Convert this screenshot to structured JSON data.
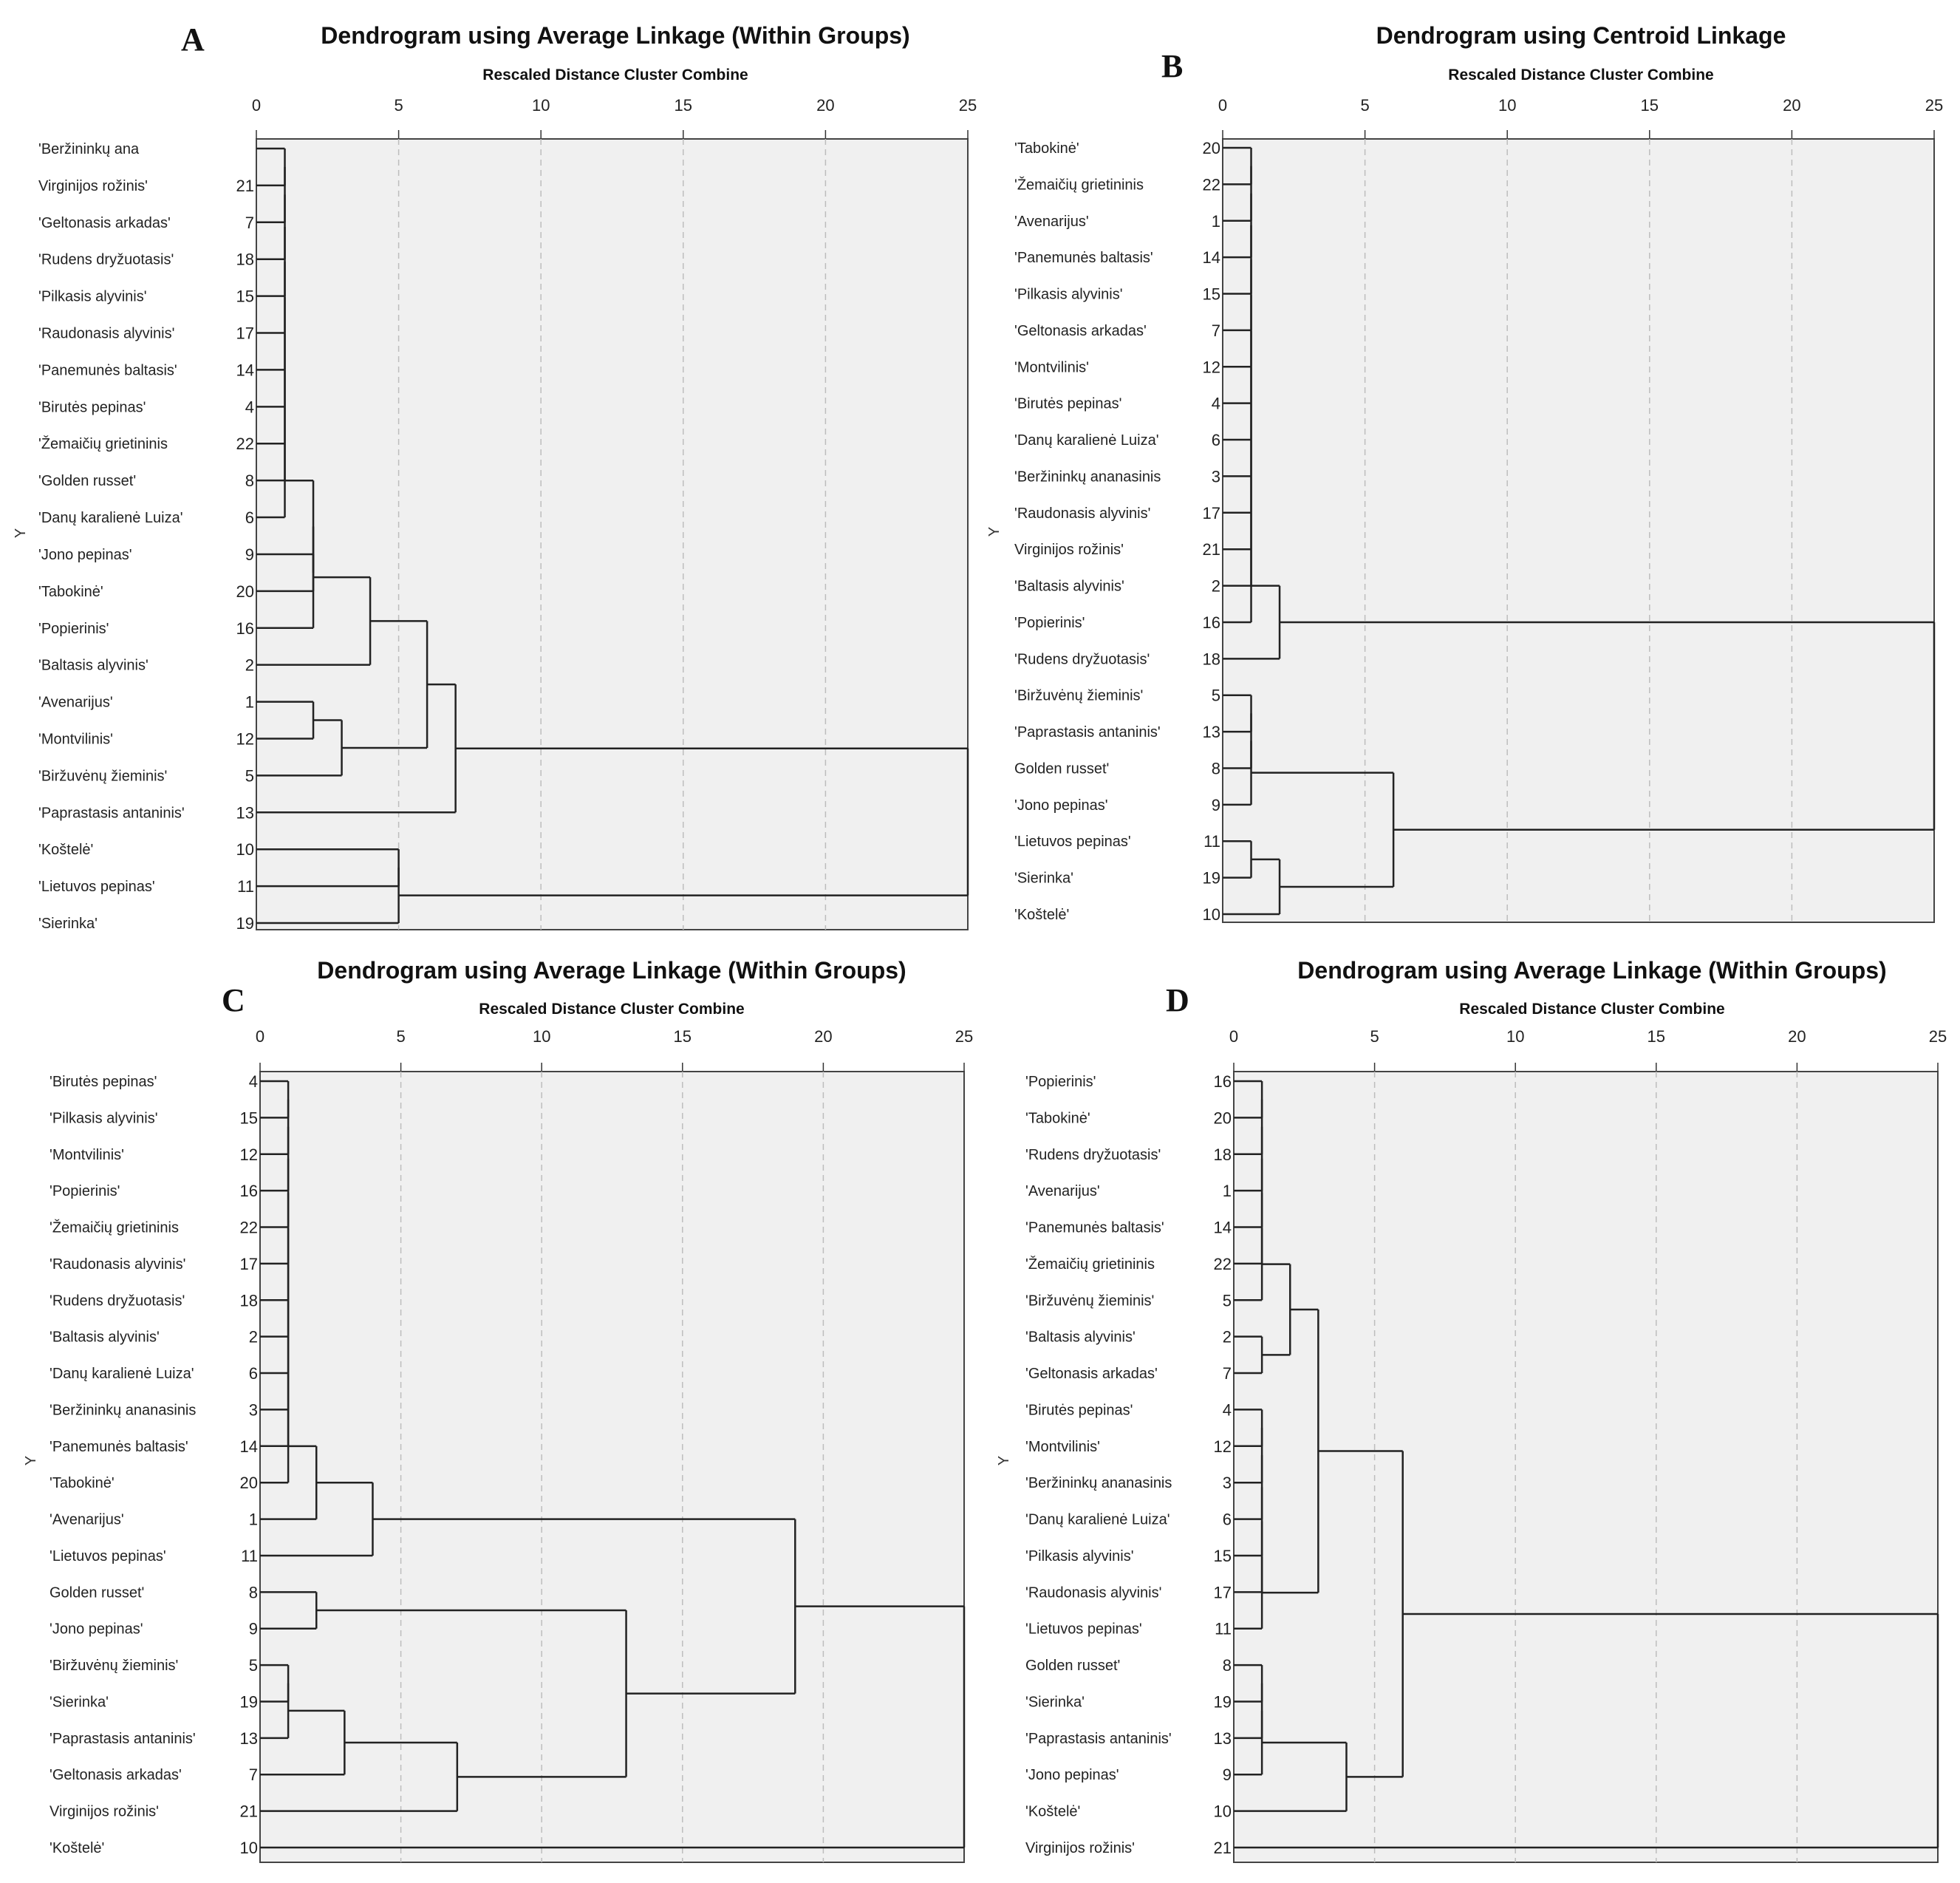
{
  "figure": {
    "panels": [
      {
        "letter": "A",
        "title": "Dendrogram using Average Linkage (Within Groups)",
        "subtitle": "Rescaled Distance Cluster Combine",
        "ylabel": "Y"
      },
      {
        "letter": "B",
        "title": "Dendrogram using Centroid Linkage",
        "subtitle": "Rescaled Distance Cluster Combine",
        "ylabel": "Y"
      },
      {
        "letter": "C",
        "title": "Dendrogram using Average Linkage (Within Groups)",
        "subtitle": "Rescaled Distance Cluster Combine",
        "ylabel": "Y"
      },
      {
        "letter": "D",
        "title": "Dendrogram using Average Linkage (Within Groups)",
        "subtitle": "Rescaled Distance Cluster Combine",
        "ylabel": "Y"
      }
    ]
  },
  "chart_data": [
    {
      "type": "dendrogram",
      "panel": "A",
      "title": "Dendrogram using Average Linkage (Within Groups)",
      "xlabel": "Rescaled Distance Cluster Combine",
      "ylabel": "Y",
      "xlim": [
        0,
        25
      ],
      "xticks": [
        0,
        5,
        10,
        15,
        20,
        25
      ],
      "leaves": [
        {
          "name": "'Beržininkų ana",
          "id": ""
        },
        {
          "name": "Virginijos rožinis'",
          "id": "21"
        },
        {
          "name": "'Geltonasis arkadas'",
          "id": "7"
        },
        {
          "name": "'Rudens dryžuotasis'",
          "id": "18"
        },
        {
          "name": "'Pilkasis alyvinis'",
          "id": "15"
        },
        {
          "name": "'Raudonasis alyvinis'",
          "id": "17"
        },
        {
          "name": "'Panemunės baltasis'",
          "id": "14"
        },
        {
          "name": "'Birutės pepinas'",
          "id": "4"
        },
        {
          "name": "'Žemaičių grietininis",
          "id": "22"
        },
        {
          "name": "'Golden russet'",
          "id": "8"
        },
        {
          "name": "'Danų karalienė Luiza'",
          "id": "6"
        },
        {
          "name": "'Jono pepinas'",
          "id": "9"
        },
        {
          "name": "'Tabokinė'",
          "id": "20"
        },
        {
          "name": "'Popierinis'",
          "id": "16"
        },
        {
          "name": "'Baltasis alyvinis'",
          "id": "2"
        },
        {
          "name": "'Avenarijus'",
          "id": "1"
        },
        {
          "name": "'Montvilinis'",
          "id": "12"
        },
        {
          "name": "'Biržuvėnų žieminis'",
          "id": "5"
        },
        {
          "name": "'Paprastasis antaninis'",
          "id": "13"
        },
        {
          "name": "'Koštelė'",
          "id": "10"
        },
        {
          "name": "'Lietuvos pepinas'",
          "id": "11"
        },
        {
          "name": "'Sierinka'",
          "id": "19"
        }
      ],
      "merges": [
        [
          0,
          1,
          1.0
        ],
        [
          22,
          2,
          1.0
        ],
        [
          23,
          3,
          1.0
        ],
        [
          24,
          4,
          1.0
        ],
        [
          25,
          5,
          1.0
        ],
        [
          26,
          6,
          1.0
        ],
        [
          27,
          7,
          1.0
        ],
        [
          28,
          8,
          1.0
        ],
        [
          29,
          9,
          1.0
        ],
        [
          30,
          10,
          1.0
        ],
        [
          11,
          12,
          2.0
        ],
        [
          31,
          32,
          2.0
        ],
        [
          33,
          13,
          2.0
        ],
        [
          34,
          14,
          4.0
        ],
        [
          15,
          16,
          2.0
        ],
        [
          36,
          17,
          3.0
        ],
        [
          35,
          37,
          6.0
        ],
        [
          38,
          18,
          7.0
        ],
        [
          19,
          20,
          5.0
        ],
        [
          40,
          21,
          5.0
        ],
        [
          39,
          41,
          25.0
        ]
      ]
    },
    {
      "type": "dendrogram",
      "panel": "B",
      "title": "Dendrogram using Centroid Linkage",
      "xlabel": "Rescaled Distance Cluster Combine",
      "ylabel": "Y",
      "xlim": [
        0,
        25
      ],
      "xticks": [
        0,
        5,
        10,
        15,
        20,
        25
      ],
      "leaves": [
        {
          "name": "'Tabokinė'",
          "id": "20"
        },
        {
          "name": "'Žemaičių grietininis",
          "id": "22"
        },
        {
          "name": "'Avenarijus'",
          "id": "1"
        },
        {
          "name": "'Panemunės baltasis'",
          "id": "14"
        },
        {
          "name": "'Pilkasis alyvinis'",
          "id": "15"
        },
        {
          "name": "'Geltonasis arkadas'",
          "id": "7"
        },
        {
          "name": "'Montvilinis'",
          "id": "12"
        },
        {
          "name": "'Birutės pepinas'",
          "id": "4"
        },
        {
          "name": "'Danų karalienė Luiza'",
          "id": "6"
        },
        {
          "name": "'Beržininkų ananasinis",
          "id": "3"
        },
        {
          "name": "'Raudonasis alyvinis'",
          "id": "17"
        },
        {
          "name": "Virginijos rožinis'",
          "id": "21"
        },
        {
          "name": "'Baltasis alyvinis'",
          "id": "2"
        },
        {
          "name": "'Popierinis'",
          "id": "16"
        },
        {
          "name": "'Rudens dryžuotasis'",
          "id": "18"
        },
        {
          "name": "'Biržuvėnų žieminis'",
          "id": "5"
        },
        {
          "name": "'Paprastasis antaninis'",
          "id": "13"
        },
        {
          "name": "Golden russet'",
          "id": "8"
        },
        {
          "name": "'Jono pepinas'",
          "id": "9"
        },
        {
          "name": "'Lietuvos pepinas'",
          "id": "11"
        },
        {
          "name": "'Sierinka'",
          "id": "19"
        },
        {
          "name": "'Koštelė'",
          "id": "10"
        }
      ],
      "merges": [
        [
          0,
          1,
          1.0
        ],
        [
          22,
          2,
          1.0
        ],
        [
          23,
          3,
          1.0
        ],
        [
          24,
          4,
          1.0
        ],
        [
          25,
          5,
          1.0
        ],
        [
          26,
          6,
          1.0
        ],
        [
          27,
          7,
          1.0
        ],
        [
          28,
          8,
          1.0
        ],
        [
          29,
          9,
          1.0
        ],
        [
          30,
          10,
          1.0
        ],
        [
          31,
          11,
          1.0
        ],
        [
          32,
          12,
          1.0
        ],
        [
          33,
          13,
          1.0
        ],
        [
          34,
          14,
          2.0
        ],
        [
          15,
          16,
          1.0
        ],
        [
          36,
          17,
          1.0
        ],
        [
          37,
          18,
          1.0
        ],
        [
          19,
          20,
          1.0
        ],
        [
          39,
          21,
          2.0
        ],
        [
          38,
          40,
          6.0
        ],
        [
          35,
          41,
          25.0
        ]
      ]
    },
    {
      "type": "dendrogram",
      "panel": "C",
      "title": "Dendrogram using Average Linkage (Within Groups)",
      "xlabel": "Rescaled Distance Cluster Combine",
      "ylabel": "Y",
      "xlim": [
        0,
        25
      ],
      "xticks": [
        0,
        5,
        10,
        15,
        20,
        25
      ],
      "leaves": [
        {
          "name": "'Birutės pepinas'",
          "id": "4"
        },
        {
          "name": "'Pilkasis alyvinis'",
          "id": "15"
        },
        {
          "name": "'Montvilinis'",
          "id": "12"
        },
        {
          "name": "'Popierinis'",
          "id": "16"
        },
        {
          "name": "'Žemaičių grietininis",
          "id": "22"
        },
        {
          "name": "'Raudonasis alyvinis'",
          "id": "17"
        },
        {
          "name": "'Rudens dryžuotasis'",
          "id": "18"
        },
        {
          "name": "'Baltasis alyvinis'",
          "id": "2"
        },
        {
          "name": "'Danų karalienė Luiza'",
          "id": "6"
        },
        {
          "name": "'Beržininkų ananasinis",
          "id": "3"
        },
        {
          "name": "'Panemunės baltasis'",
          "id": "14"
        },
        {
          "name": "'Tabokinė'",
          "id": "20"
        },
        {
          "name": "'Avenarijus'",
          "id": "1"
        },
        {
          "name": "'Lietuvos pepinas'",
          "id": "11"
        },
        {
          "name": "Golden russet'",
          "id": "8"
        },
        {
          "name": "'Jono pepinas'",
          "id": "9"
        },
        {
          "name": "'Biržuvėnų žieminis'",
          "id": "5"
        },
        {
          "name": "'Sierinka'",
          "id": "19"
        },
        {
          "name": "'Paprastasis antaninis'",
          "id": "13"
        },
        {
          "name": "'Geltonasis arkadas'",
          "id": "7"
        },
        {
          "name": "Virginijos rožinis'",
          "id": "21"
        },
        {
          "name": "'Koštelė'",
          "id": "10"
        }
      ],
      "merges": [
        [
          0,
          1,
          1.0
        ],
        [
          22,
          2,
          1.0
        ],
        [
          23,
          3,
          1.0
        ],
        [
          24,
          4,
          1.0
        ],
        [
          25,
          5,
          1.0
        ],
        [
          26,
          6,
          1.0
        ],
        [
          27,
          7,
          1.0
        ],
        [
          28,
          8,
          1.0
        ],
        [
          29,
          9,
          1.0
        ],
        [
          30,
          10,
          1.0
        ],
        [
          31,
          11,
          1.0
        ],
        [
          32,
          12,
          2.0
        ],
        [
          33,
          13,
          4.0
        ],
        [
          14,
          15,
          2.0
        ],
        [
          16,
          17,
          1.0
        ],
        [
          36,
          18,
          1.0
        ],
        [
          37,
          19,
          3.0
        ],
        [
          38,
          20,
          7.0
        ],
        [
          35,
          39,
          13.0
        ],
        [
          34,
          40,
          19.0
        ],
        [
          41,
          21,
          25.0
        ]
      ]
    },
    {
      "type": "dendrogram",
      "panel": "D",
      "title": "Dendrogram using Average Linkage (Within Groups)",
      "xlabel": "Rescaled Distance Cluster Combine",
      "ylabel": "Y",
      "xlim": [
        0,
        25
      ],
      "xticks": [
        0,
        5,
        10,
        15,
        20,
        25
      ],
      "leaves": [
        {
          "name": "'Popierinis'",
          "id": "16"
        },
        {
          "name": "'Tabokinė'",
          "id": "20"
        },
        {
          "name": "'Rudens dryžuotasis'",
          "id": "18"
        },
        {
          "name": "'Avenarijus'",
          "id": "1"
        },
        {
          "name": "'Panemunės baltasis'",
          "id": "14"
        },
        {
          "name": "'Žemaičių grietininis",
          "id": "22"
        },
        {
          "name": "'Biržuvėnų žieminis'",
          "id": "5"
        },
        {
          "name": "'Baltasis alyvinis'",
          "id": "2"
        },
        {
          "name": "'Geltonasis arkadas'",
          "id": "7"
        },
        {
          "name": "'Birutės pepinas'",
          "id": "4"
        },
        {
          "name": "'Montvilinis'",
          "id": "12"
        },
        {
          "name": "'Beržininkų ananasinis",
          "id": "3"
        },
        {
          "name": "'Danų karalienė Luiza'",
          "id": "6"
        },
        {
          "name": "'Pilkasis alyvinis'",
          "id": "15"
        },
        {
          "name": "'Raudonasis alyvinis'",
          "id": "17"
        },
        {
          "name": "'Lietuvos pepinas'",
          "id": "11"
        },
        {
          "name": "Golden russet'",
          "id": "8"
        },
        {
          "name": "'Sierinka'",
          "id": "19"
        },
        {
          "name": "'Paprastasis antaninis'",
          "id": "13"
        },
        {
          "name": "'Jono pepinas'",
          "id": "9"
        },
        {
          "name": "'Koštelė'",
          "id": "10"
        },
        {
          "name": "Virginijos rožinis'",
          "id": "21"
        }
      ],
      "merges": [
        [
          0,
          1,
          1.0
        ],
        [
          22,
          2,
          1.0
        ],
        [
          23,
          3,
          1.0
        ],
        [
          24,
          4,
          1.0
        ],
        [
          25,
          5,
          1.0
        ],
        [
          26,
          6,
          1.0
        ],
        [
          7,
          8,
          1.0
        ],
        [
          27,
          28,
          2.0
        ],
        [
          9,
          10,
          1.0
        ],
        [
          30,
          11,
          1.0
        ],
        [
          31,
          12,
          1.0
        ],
        [
          32,
          13,
          1.0
        ],
        [
          33,
          14,
          1.0
        ],
        [
          34,
          15,
          1.0
        ],
        [
          29,
          35,
          3.0
        ],
        [
          16,
          17,
          1.0
        ],
        [
          37,
          18,
          1.0
        ],
        [
          38,
          19,
          1.0
        ],
        [
          39,
          20,
          4.0
        ],
        [
          36,
          40,
          6.0
        ],
        [
          41,
          21,
          25.0
        ]
      ]
    }
  ]
}
